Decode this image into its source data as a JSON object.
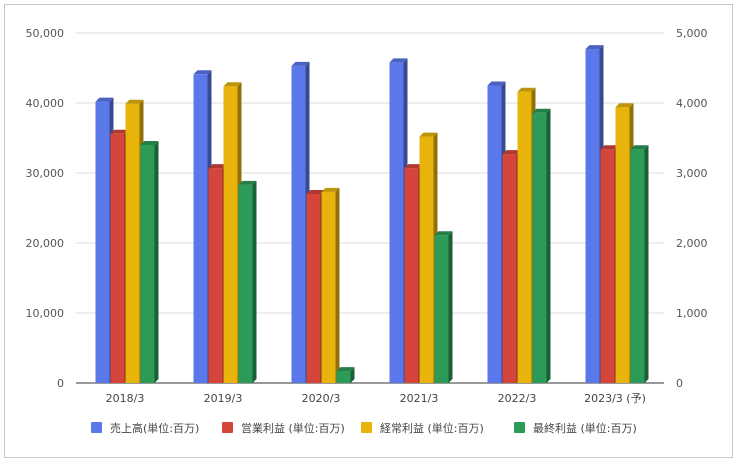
{
  "chart_data": {
    "type": "bar",
    "categories": [
      "2018/3",
      "2019/3",
      "2020/3",
      "2021/3",
      "2022/3",
      "2023/3 (予)"
    ],
    "series": [
      {
        "name": "売上高(単位:百万)",
        "axis": "left",
        "color": "#5b78ea",
        "values": [
          40200,
          44100,
          45300,
          45800,
          42500,
          47700
        ]
      },
      {
        "name": "営業利益 (単位:百万)",
        "axis": "right",
        "color": "#d6453b",
        "values": [
          3560,
          3070,
          2700,
          3070,
          3270,
          3340
        ]
      },
      {
        "name": "経常利益 (単位:百万)",
        "axis": "right",
        "color": "#e8b40c",
        "values": [
          3990,
          4240,
          2730,
          3520,
          4160,
          3940
        ]
      },
      {
        "name": "最終利益 (単位:百万)",
        "axis": "right",
        "color": "#2b9b57",
        "values": [
          3400,
          2830,
          170,
          2110,
          3860,
          3340
        ]
      }
    ],
    "y_left": {
      "ticks": [
        "0",
        "10,000",
        "20,000",
        "30,000",
        "40,000",
        "50,000"
      ],
      "ylim": [
        0,
        50000
      ]
    },
    "y_right": {
      "ticks": [
        "0",
        "1,000",
        "2,000",
        "3,000",
        "4,000",
        "5,000"
      ],
      "ylim": [
        0,
        5000
      ]
    },
    "legend": "bottom",
    "grid": true
  }
}
